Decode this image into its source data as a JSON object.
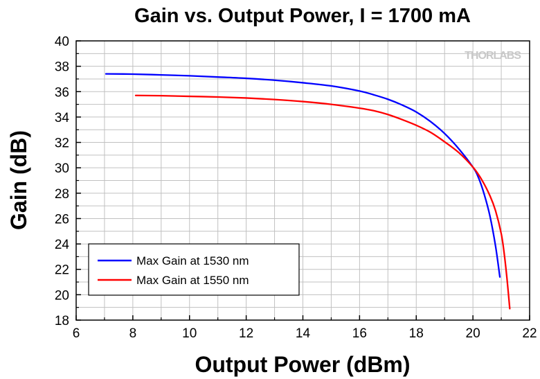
{
  "chart_data": {
    "type": "line",
    "title": "Gain vs. Output Power, I = 1700 mA",
    "xlabel": "Output Power (dBm)",
    "ylabel": "Gain (dB)",
    "xlim": [
      6,
      22
    ],
    "ylim": [
      18,
      40
    ],
    "xticks": [
      6,
      8,
      10,
      12,
      14,
      16,
      18,
      20,
      22
    ],
    "yticks": [
      18,
      20,
      22,
      24,
      26,
      28,
      30,
      32,
      34,
      36,
      38,
      40
    ],
    "grid": true,
    "legend_position": "bottom-left",
    "watermark": "THORLABS",
    "series": [
      {
        "name": "Max Gain at 1530 nm",
        "color": "#0000ff",
        "x": [
          7.05,
          8,
          9,
          10,
          11,
          12,
          13,
          14,
          15,
          16,
          16.5,
          17,
          17.5,
          18,
          18.5,
          19,
          19.5,
          20,
          20.2,
          20.4,
          20.6,
          20.8,
          20.95
        ],
        "y": [
          37.4,
          37.38,
          37.32,
          37.25,
          37.15,
          37.05,
          36.9,
          36.7,
          36.45,
          36.05,
          35.75,
          35.4,
          34.95,
          34.4,
          33.65,
          32.7,
          31.5,
          30.05,
          29.2,
          27.9,
          26.2,
          23.8,
          21.4
        ]
      },
      {
        "name": "Max Gain at 1550 nm",
        "color": "#ff0000",
        "x": [
          8.1,
          9,
          10,
          11,
          12,
          13,
          14,
          15,
          16,
          16.5,
          17,
          17.5,
          18,
          18.5,
          19,
          19.5,
          20,
          20.3,
          20.6,
          20.8,
          21,
          21.1,
          21.2,
          21.3
        ],
        "y": [
          35.7,
          35.68,
          35.63,
          35.58,
          35.5,
          35.38,
          35.22,
          35.0,
          34.7,
          34.5,
          34.2,
          33.8,
          33.35,
          32.8,
          32.05,
          31.2,
          30.05,
          29.1,
          27.8,
          26.6,
          24.8,
          23.3,
          21.3,
          18.9
        ]
      }
    ]
  }
}
